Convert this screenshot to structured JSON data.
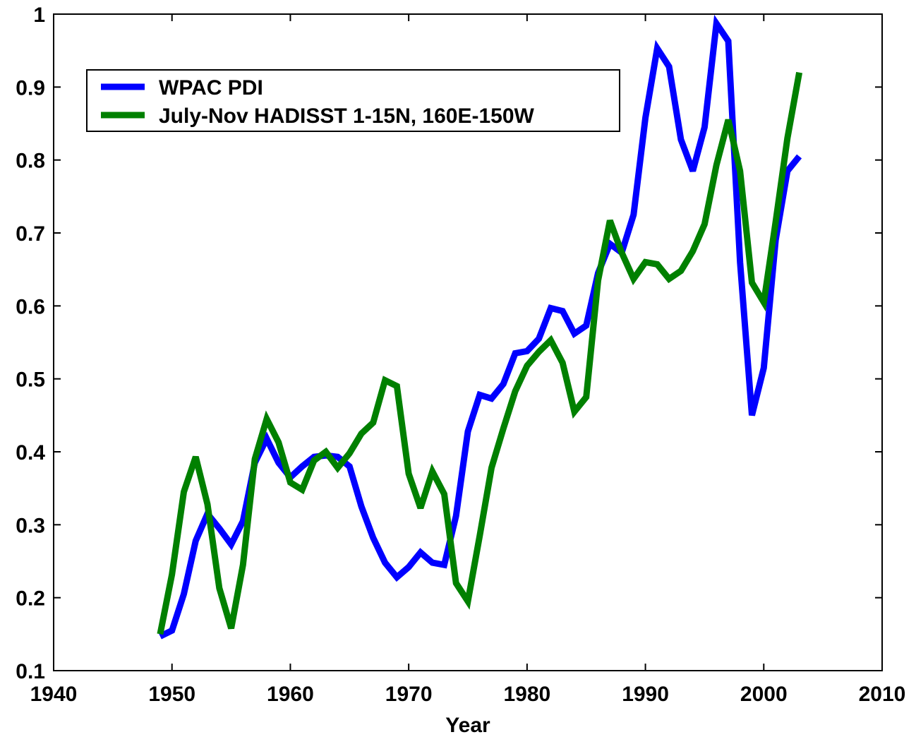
{
  "chart_data": {
    "type": "line",
    "title": "",
    "xlabel": "Year",
    "ylabel": "",
    "xlim": [
      1940,
      2010
    ],
    "ylim": [
      0.1,
      1
    ],
    "xticks": [
      1940,
      1950,
      1960,
      1970,
      1980,
      1990,
      2000,
      2010
    ],
    "yticks": [
      0.1,
      0.2,
      0.3,
      0.4,
      0.5,
      0.6,
      0.7,
      0.8,
      0.9,
      1
    ],
    "ytick_labels": [
      "0.1",
      "0.2",
      "0.3",
      "0.4",
      "0.5",
      "0.6",
      "0.7",
      "0.8",
      "0.9",
      "1"
    ],
    "grid": false,
    "legend_position": "top-left",
    "x": [
      1949,
      1950,
      1951,
      1952,
      1953,
      1954,
      1955,
      1956,
      1957,
      1958,
      1959,
      1960,
      1961,
      1962,
      1963,
      1964,
      1965,
      1966,
      1967,
      1968,
      1969,
      1970,
      1971,
      1972,
      1973,
      1974,
      1975,
      1976,
      1977,
      1978,
      1979,
      1980,
      1981,
      1982,
      1983,
      1984,
      1985,
      1986,
      1987,
      1988,
      1989,
      1990,
      1991,
      1992,
      1993,
      1994,
      1995,
      1996,
      1997,
      1998,
      1999,
      2000,
      2001,
      2002,
      2003
    ],
    "series": [
      {
        "name": "WPAC PDI",
        "color": "#0000ff",
        "values": [
          0.147,
          0.155,
          0.205,
          0.278,
          0.315,
          0.295,
          0.273,
          0.305,
          0.385,
          0.418,
          0.385,
          0.365,
          0.38,
          0.393,
          0.395,
          0.393,
          0.38,
          0.325,
          0.282,
          0.248,
          0.228,
          0.242,
          0.262,
          0.248,
          0.245,
          0.312,
          0.428,
          0.478,
          0.473,
          0.493,
          0.535,
          0.538,
          0.555,
          0.597,
          0.593,
          0.562,
          0.573,
          0.645,
          0.685,
          0.673,
          0.725,
          0.858,
          0.953,
          0.928,
          0.828,
          0.785,
          0.845,
          0.987,
          0.963,
          0.66,
          0.45,
          0.515,
          0.69,
          0.785,
          0.805
        ]
      },
      {
        "name": "July-Nov HADISST 1-15N, 160E-150W",
        "color": "#008000",
        "values": [
          0.15,
          0.232,
          0.345,
          0.393,
          0.328,
          0.213,
          0.158,
          0.245,
          0.39,
          0.445,
          0.413,
          0.358,
          0.348,
          0.388,
          0.4,
          0.378,
          0.398,
          0.425,
          0.44,
          0.498,
          0.49,
          0.37,
          0.323,
          0.373,
          0.342,
          0.22,
          0.195,
          0.285,
          0.378,
          0.432,
          0.483,
          0.518,
          0.537,
          0.553,
          0.522,
          0.455,
          0.475,
          0.635,
          0.717,
          0.673,
          0.637,
          0.66,
          0.657,
          0.637,
          0.648,
          0.675,
          0.712,
          0.793,
          0.855,
          0.785,
          0.632,
          0.605,
          0.715,
          0.83,
          0.92
        ]
      }
    ]
  }
}
